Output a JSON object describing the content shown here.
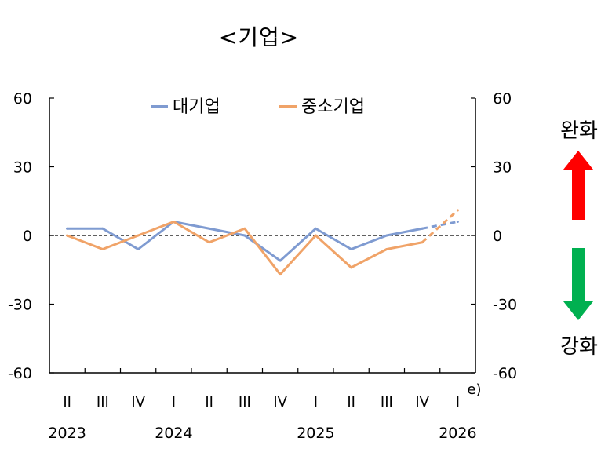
{
  "title": "<기업>",
  "legend": [
    {
      "name": "대기업",
      "color": "#7f9bd1"
    },
    {
      "name": "중소기업",
      "color": "#f0a368"
    }
  ],
  "side_labels": {
    "ease": "완화",
    "tighten": "강화"
  },
  "colors": {
    "ease_arrow": "#ff0000",
    "tighten_arrow": "#00b050",
    "zero_line": "#000000"
  },
  "chart_data": {
    "type": "line",
    "title": "<기업>",
    "x_tick_labels": [
      "II",
      "III",
      "IV",
      "I",
      "II",
      "III",
      "IV",
      "I",
      "II",
      "III",
      "IV",
      "I"
    ],
    "year_labels": [
      {
        "label": "2023",
        "index": 0
      },
      {
        "label": "2024",
        "index": 3
      },
      {
        "label": "2025",
        "index": 7
      },
      {
        "label": "2026",
        "index": 11
      }
    ],
    "forecast_marker": "e)",
    "forecast_start_index": 10,
    "ylim": [
      -60,
      60
    ],
    "yticks": [
      60,
      30,
      0,
      -30,
      -60
    ],
    "dual_axis": true,
    "zero_line": "dashed",
    "series": [
      {
        "name": "대기업",
        "color": "#7f9bd1",
        "values": [
          3,
          3,
          -6,
          6,
          3,
          0,
          -11,
          3,
          -6,
          0,
          3,
          6
        ]
      },
      {
        "name": "중소기업",
        "color": "#f0a368",
        "values": [
          0,
          -6,
          0,
          6,
          -3,
          3,
          -17,
          0,
          -14,
          -6,
          -3,
          11
        ]
      }
    ],
    "legend_position": "top-center",
    "grid": false
  }
}
